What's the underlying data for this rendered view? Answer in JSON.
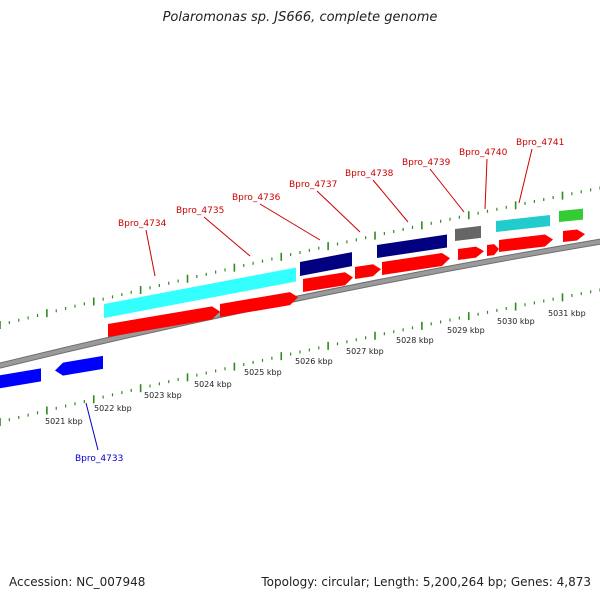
{
  "header": {
    "title": "Polaromonas sp. JS666, complete genome"
  },
  "footer": {
    "accession_label": "Accession:",
    "accession": "NC_007948",
    "topology_text": "Topology: circular; Length: 5,200,264 bp; Genes: 4,873"
  },
  "scale": {
    "unit": "kbp",
    "ticks": [
      "5021 kbp",
      "5022 kbp",
      "5023 kbp",
      "5024 kbp",
      "5025 kbp",
      "5026 kbp",
      "5027 kbp",
      "5028 kbp",
      "5029 kbp",
      "5030 kbp",
      "5031 kbp"
    ]
  },
  "colors": {
    "backbone": "#9a9a9a",
    "tick": "#2e8b1e",
    "cds": "#ff0000",
    "label_forward": "#cc0000",
    "label_reverse": "#0000cc",
    "cyan": "#33ffff",
    "navy": "#000080",
    "grey": "#666666",
    "green": "#33cc33",
    "blue": "#0000ff"
  },
  "gene_labels": [
    {
      "name": "Bpro_4733",
      "strand": "reverse"
    },
    {
      "name": "Bpro_4734",
      "strand": "forward"
    },
    {
      "name": "Bpro_4735",
      "strand": "forward"
    },
    {
      "name": "Bpro_4736",
      "strand": "forward"
    },
    {
      "name": "Bpro_4737",
      "strand": "forward"
    },
    {
      "name": "Bpro_4738",
      "strand": "forward"
    },
    {
      "name": "Bpro_4739",
      "strand": "forward"
    },
    {
      "name": "Bpro_4740",
      "strand": "forward"
    },
    {
      "name": "Bpro_4741",
      "strand": "forward"
    }
  ]
}
